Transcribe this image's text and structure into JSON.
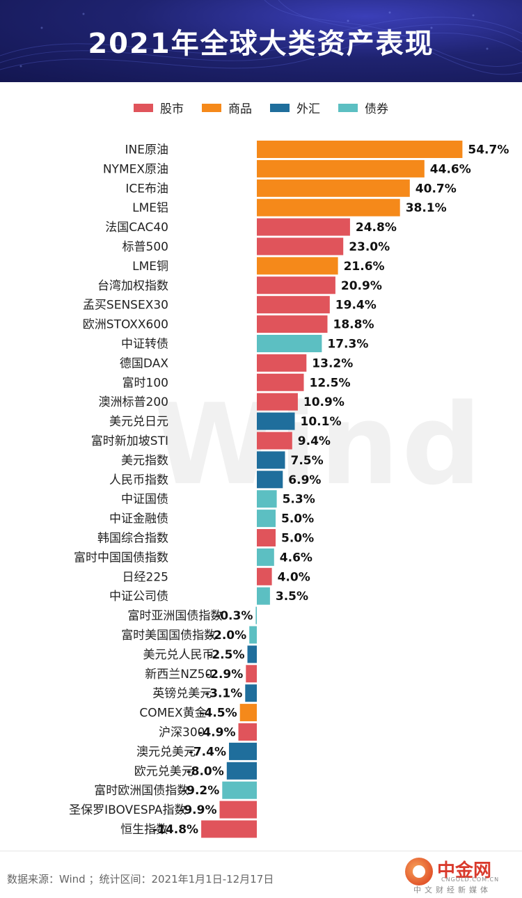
{
  "header": {
    "title": "2021年全球大类资产表现"
  },
  "legend": [
    {
      "label": "股市",
      "color": "#E0545B"
    },
    {
      "label": "商品",
      "color": "#F5891A"
    },
    {
      "label": "外汇",
      "color": "#1F6E9C"
    },
    {
      "label": "债券",
      "color": "#5CBFC2"
    }
  ],
  "watermark": "Wind",
  "footer": {
    "source": "数据来源：Wind  ；统计区间：2021年1月1日-12月17日"
  },
  "logo": {
    "name": "中金网",
    "url": "CNGOLD.COM.CN",
    "slogan": "中文财经新媒体"
  },
  "chart_data": {
    "type": "bar",
    "orientation": "horizontal",
    "title": "2021年全球大类资产表现",
    "unit": "%",
    "categories": [
      "INE原油",
      "NYMEX原油",
      "ICE布油",
      "LME铝",
      "法国CAC40",
      "标普500",
      "LME铜",
      "台湾加权指数",
      "孟买SENSEX30",
      "欧洲STOXX600",
      "中证转债",
      "德国DAX",
      "富时100",
      "澳洲标普200",
      "美元兑日元",
      "富时新加坡STI",
      "美元指数",
      "人民币指数",
      "中证国债",
      "中证金融债",
      "韩国综合指数",
      "富时中国国债指数",
      "日经225",
      "中证公司债",
      "富时亚洲国债指数",
      "富时美国国债指数",
      "美元兑人民币",
      "新西兰NZ50",
      "英镑兑美元",
      "COMEX黄金",
      "沪深300",
      "澳元兑美元",
      "欧元兑美元",
      "富时欧洲国债指数",
      "圣保罗IBOVESPA指数",
      "恒生指数"
    ],
    "values": [
      54.7,
      44.6,
      40.7,
      38.1,
      24.8,
      23.0,
      21.6,
      20.9,
      19.4,
      18.8,
      17.3,
      13.2,
      12.5,
      10.9,
      10.1,
      9.4,
      7.5,
      6.9,
      5.3,
      5.0,
      5.0,
      4.6,
      4.0,
      3.5,
      -0.3,
      -2.0,
      -2.5,
      -2.9,
      -3.1,
      -4.5,
      -4.9,
      -7.4,
      -8.0,
      -9.2,
      -9.9,
      -14.8
    ],
    "labels": [
      "54.7%",
      "44.6%",
      "40.7%",
      "38.1%",
      "24.8%",
      "23.0%",
      "21.6%",
      "20.9%",
      "19.4%",
      "18.8%",
      "17.3%",
      "13.2%",
      "12.5%",
      "10.9%",
      "10.1%",
      "9.4%",
      "7.5%",
      "6.9%",
      "5.3%",
      "5.0%",
      "5.0%",
      "4.6%",
      "4.0%",
      "3.5%",
      "-0.3%",
      "-2.0%",
      "-2.5%",
      "-2.9%",
      "-3.1%",
      "-4.5%",
      "-4.9%",
      "-7.4%",
      "-8.0%",
      "-9.2%",
      "-9.9%",
      "-14.8%"
    ],
    "groups": [
      "商品",
      "商品",
      "商品",
      "商品",
      "股市",
      "股市",
      "商品",
      "股市",
      "股市",
      "股市",
      "债券",
      "股市",
      "股市",
      "股市",
      "外汇",
      "股市",
      "外汇",
      "外汇",
      "债券",
      "债券",
      "股市",
      "债券",
      "股市",
      "债券",
      "债券",
      "债券",
      "外汇",
      "股市",
      "外汇",
      "商品",
      "股市",
      "外汇",
      "外汇",
      "债券",
      "股市",
      "股市"
    ],
    "xlim": [
      -14.8,
      54.7
    ],
    "grid": false,
    "legend_position": "top"
  }
}
